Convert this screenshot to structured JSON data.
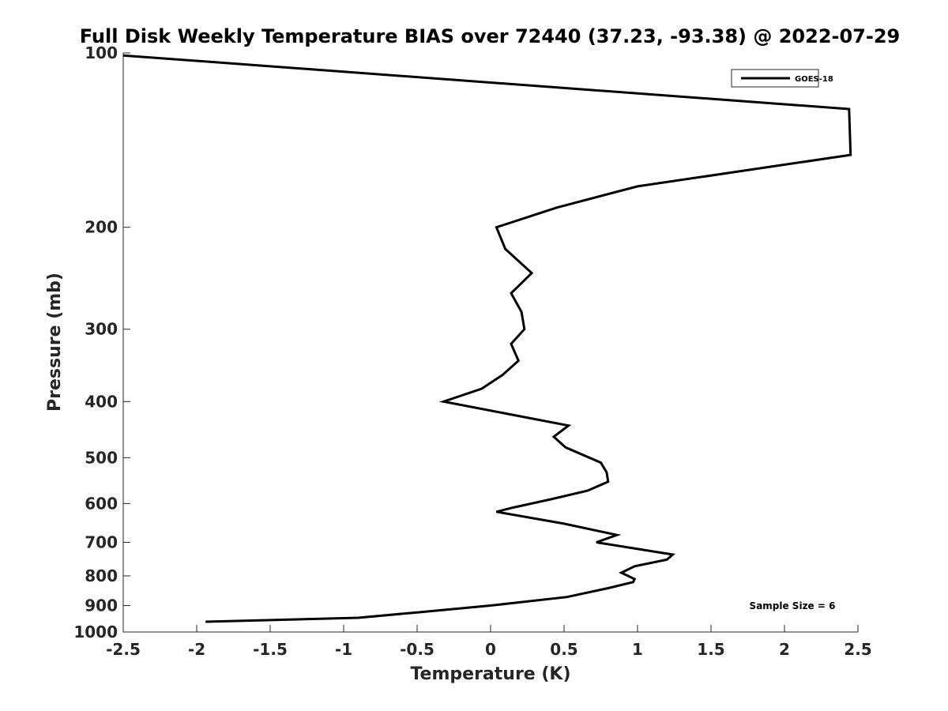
{
  "chart_data": {
    "type": "line",
    "title": "Full Disk Weekly Temperature BIAS over 72440 (37.23, -93.38) @ 2022-07-29",
    "xlabel": "Temperature (K)",
    "ylabel": "Pressure (mb)",
    "xlim": [
      -2.5,
      2.5
    ],
    "ylim": [
      100,
      1000
    ],
    "y_scale": "log",
    "y_reversed": true,
    "x_ticks": [
      -2.5,
      -2,
      -1.5,
      -1,
      -0.5,
      0,
      0.5,
      1,
      1.5,
      2,
      2.5
    ],
    "x_tick_labels": [
      "-2.5",
      "-2",
      "-1.5",
      "-1",
      "-0.5",
      "0",
      "0.5",
      "1",
      "1.5",
      "2",
      "2.5"
    ],
    "y_ticks": [
      100,
      200,
      300,
      400,
      500,
      600,
      700,
      800,
      900,
      1000
    ],
    "y_tick_labels": [
      "100",
      "200",
      "300",
      "400",
      "500",
      "600",
      "700",
      "800",
      "900",
      "1000"
    ],
    "grid": false,
    "legend_position": "top-right",
    "series": [
      {
        "name": "GOES-18",
        "color": "#000000",
        "x": [
          -2.5,
          2.44,
          2.45,
          1.0,
          0.45,
          0.04,
          0.1,
          0.28,
          0.14,
          0.21,
          0.23,
          0.14,
          0.19,
          0.08,
          -0.06,
          -0.32,
          0.53,
          0.43,
          0.51,
          0.75,
          0.79,
          0.8,
          0.66,
          0.41,
          0.15,
          0.04,
          0.5,
          0.86,
          0.72,
          1.24,
          1.2,
          0.98,
          0.89,
          0.98,
          0.97,
          0.8,
          0.52,
          0.0,
          -0.5,
          -0.9,
          -1.94
        ],
        "y": [
          101,
          125,
          150,
          170,
          185,
          200,
          218,
          240,
          260,
          280,
          300,
          318,
          340,
          360,
          380,
          400,
          440,
          460,
          480,
          510,
          530,
          550,
          570,
          590,
          610,
          620,
          650,
          680,
          700,
          735,
          750,
          770,
          790,
          810,
          820,
          840,
          870,
          900,
          925,
          945,
          960
        ]
      }
    ],
    "legend": {
      "label": "GOES-18"
    },
    "annotations": {
      "sample_size": "Sample Size = 6"
    }
  }
}
